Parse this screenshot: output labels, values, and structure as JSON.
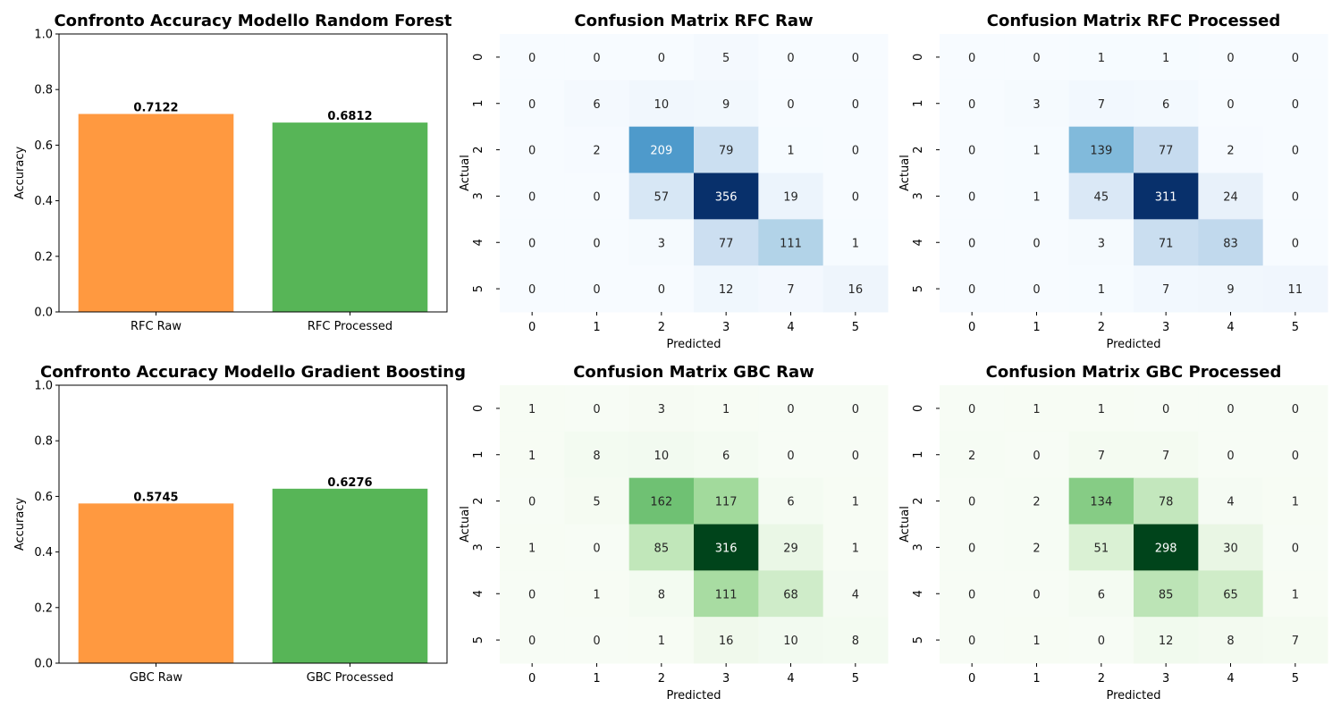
{
  "chart_data": [
    {
      "type": "bar",
      "title": "Confronto Accuracy Modello Random Forest",
      "xlabel": "",
      "ylabel": "Accuracy",
      "ylim": [
        0,
        1.0
      ],
      "yticks": [
        "0.0",
        "0.2",
        "0.4",
        "0.6",
        "0.8",
        "1.0"
      ],
      "categories": [
        "RFC Raw",
        "RFC Processed"
      ],
      "values": [
        0.7122,
        0.6812
      ],
      "value_labels": [
        "0.7122",
        "0.6812"
      ],
      "colors": [
        "#ff9940",
        "#57b557"
      ]
    },
    {
      "type": "heatmap",
      "title": "Confusion Matrix RFC Raw",
      "xlabel": "Predicted",
      "ylabel": "Actual",
      "labels": [
        "0",
        "1",
        "2",
        "3",
        "4",
        "5"
      ],
      "colormap": "Blues",
      "matrix": [
        [
          0,
          0,
          0,
          5,
          0,
          0
        ],
        [
          0,
          6,
          10,
          9,
          0,
          0
        ],
        [
          0,
          2,
          209,
          79,
          1,
          0
        ],
        [
          0,
          0,
          57,
          356,
          19,
          0
        ],
        [
          0,
          0,
          3,
          77,
          111,
          1
        ],
        [
          0,
          0,
          0,
          12,
          7,
          16
        ]
      ]
    },
    {
      "type": "heatmap",
      "title": "Confusion Matrix RFC Processed",
      "xlabel": "Predicted",
      "ylabel": "Actual",
      "labels": [
        "0",
        "1",
        "2",
        "3",
        "4",
        "5"
      ],
      "colormap": "Blues",
      "matrix": [
        [
          0,
          0,
          1,
          1,
          0,
          0
        ],
        [
          0,
          3,
          7,
          6,
          0,
          0
        ],
        [
          0,
          1,
          139,
          77,
          2,
          0
        ],
        [
          0,
          1,
          45,
          311,
          24,
          0
        ],
        [
          0,
          0,
          3,
          71,
          83,
          0
        ],
        [
          0,
          0,
          1,
          7,
          9,
          11
        ]
      ]
    },
    {
      "type": "bar",
      "title": "Confronto Accuracy Modello Gradient Boosting",
      "xlabel": "",
      "ylabel": "Accuracy",
      "ylim": [
        0,
        1.0
      ],
      "yticks": [
        "0.0",
        "0.2",
        "0.4",
        "0.6",
        "0.8",
        "1.0"
      ],
      "categories": [
        "GBC Raw",
        "GBC Processed"
      ],
      "values": [
        0.5745,
        0.6276
      ],
      "value_labels": [
        "0.5745",
        "0.6276"
      ],
      "colors": [
        "#ff9940",
        "#57b557"
      ]
    },
    {
      "type": "heatmap",
      "title": "Confusion Matrix GBC Raw",
      "xlabel": "Predicted",
      "ylabel": "Actual",
      "labels": [
        "0",
        "1",
        "2",
        "3",
        "4",
        "5"
      ],
      "colormap": "Greens",
      "matrix": [
        [
          1,
          0,
          3,
          1,
          0,
          0
        ],
        [
          1,
          8,
          10,
          6,
          0,
          0
        ],
        [
          0,
          5,
          162,
          117,
          6,
          1
        ],
        [
          1,
          0,
          85,
          316,
          29,
          1
        ],
        [
          0,
          1,
          8,
          111,
          68,
          4
        ],
        [
          0,
          0,
          1,
          16,
          10,
          8
        ]
      ]
    },
    {
      "type": "heatmap",
      "title": "Confusion Matrix GBC Processed",
      "xlabel": "Predicted",
      "ylabel": "Actual",
      "labels": [
        "0",
        "1",
        "2",
        "3",
        "4",
        "5"
      ],
      "colormap": "Greens",
      "matrix": [
        [
          0,
          1,
          1,
          0,
          0,
          0
        ],
        [
          2,
          0,
          7,
          7,
          0,
          0
        ],
        [
          0,
          2,
          134,
          78,
          4,
          1
        ],
        [
          0,
          2,
          51,
          298,
          30,
          0
        ],
        [
          0,
          0,
          6,
          85,
          65,
          1
        ],
        [
          0,
          1,
          0,
          12,
          8,
          7
        ]
      ]
    }
  ]
}
